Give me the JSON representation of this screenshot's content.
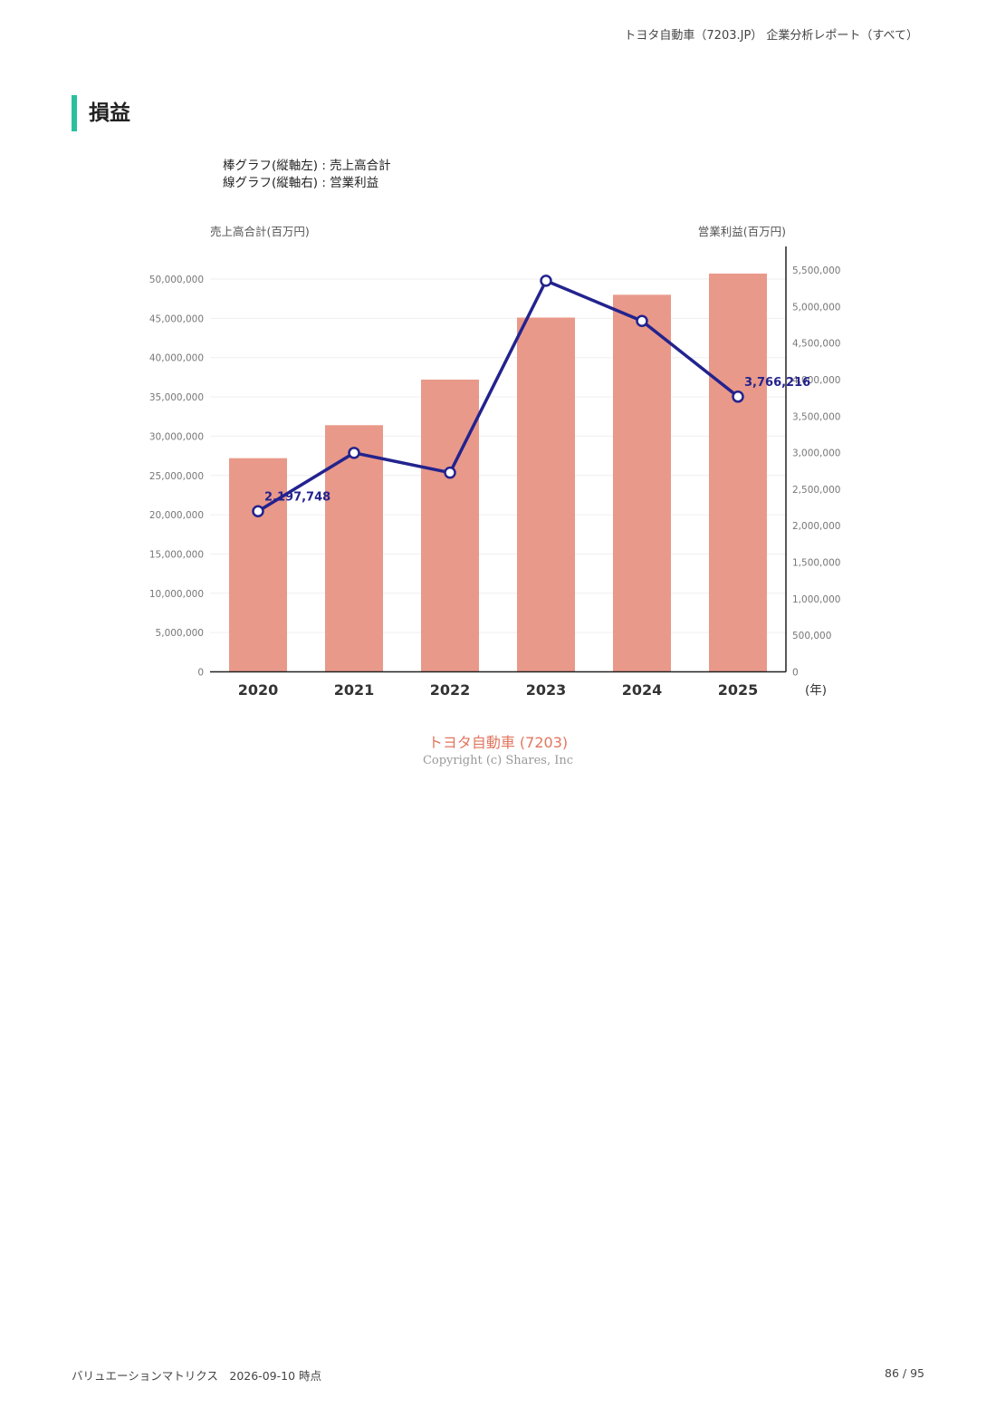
{
  "header": {
    "report_title": "トヨタ自動車（7203.JP） 企業分析レポート（すべて）"
  },
  "section": {
    "title": "損益"
  },
  "legend_note": {
    "line1": "棒グラフ(縦軸左) : 売上高合計",
    "line2": "線グラフ(縦軸右) : 営業利益"
  },
  "chart_data": {
    "type": "bar",
    "categories": [
      "2020",
      "2021",
      "2022",
      "2023",
      "2024",
      "2025"
    ],
    "x_unit_label": "(年)",
    "series": [
      {
        "name": "売上高合計",
        "type": "bar",
        "axis": "left",
        "values": [
          27200000,
          31400000,
          37200000,
          45100000,
          48000000,
          50700000
        ],
        "color": "#e9998a"
      },
      {
        "name": "営業利益",
        "type": "line",
        "axis": "right",
        "values": [
          2197748,
          2997000,
          2726000,
          5353000,
          4803000,
          3766216
        ],
        "color": "#23238e",
        "data_labels": [
          {
            "index": 0,
            "text": "2,197,748"
          },
          {
            "index": 5,
            "text": "3,766,216"
          }
        ]
      }
    ],
    "y_left": {
      "label": "売上高合計(百万円)",
      "ylim": [
        0,
        50000000
      ],
      "ticks": [
        "0",
        "5,000,000",
        "10,000,000",
        "15,000,000",
        "20,000,000",
        "25,000,000",
        "30,000,000",
        "35,000,000",
        "40,000,000",
        "45,000,000",
        "50,000,000"
      ]
    },
    "y_right": {
      "label": "営業利益(百万円)",
      "ylim": [
        0,
        5500000
      ],
      "ticks": [
        "0",
        "500,000",
        "1,000,000",
        "1,500,000",
        "2,000,000",
        "2,500,000",
        "3,000,000",
        "3,500,000",
        "4,000,000",
        "4,500,000",
        "5,000,000",
        "5,500,000"
      ]
    },
    "grid": true
  },
  "chart_caption": {
    "company": "トヨタ自動車 (7203)",
    "copyright": "Copyright (c) Shares, Inc"
  },
  "footer": {
    "left": "バリュエーションマトリクス　2026-09-10 時点",
    "page": "86 / 95"
  }
}
